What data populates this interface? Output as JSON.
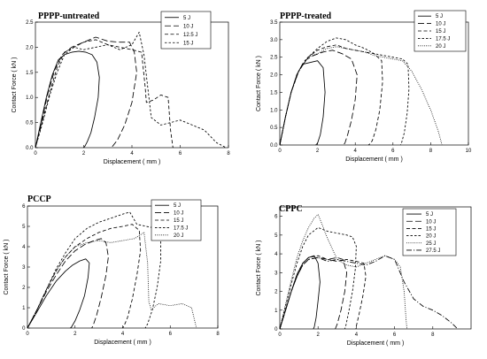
{
  "figure": {
    "background": "#ffffff"
  },
  "chart_data": [
    {
      "type": "line",
      "title": "PPPP-untreated",
      "xlabel": "Displacement ( mm )",
      "ylabel": "Contact Force ( kN )",
      "xlim": [
        0,
        8
      ],
      "ylim": [
        0,
        2.5
      ],
      "xticks": [
        "0",
        "2",
        "4",
        "6",
        "8"
      ],
      "yticks": [
        "0.0",
        "0.5",
        "1.0",
        "1.5",
        "2.0",
        "2.5"
      ],
      "legend_position": "top-right",
      "series": [
        {
          "name": "5 J",
          "dash": "solid",
          "x": [
            0,
            0.2,
            0.45,
            0.7,
            0.95,
            1.2,
            1.5,
            1.8,
            2.1,
            2.35,
            2.55,
            2.65,
            2.6,
            2.45,
            2.3,
            2.15,
            2.05,
            2.0
          ],
          "y": [
            0,
            0.45,
            1.0,
            1.45,
            1.75,
            1.85,
            1.9,
            1.92,
            1.9,
            1.85,
            1.7,
            1.4,
            1.0,
            0.6,
            0.3,
            0.12,
            0.03,
            0
          ]
        },
        {
          "name": "10 J",
          "dash": "long",
          "x": [
            0,
            0.25,
            0.5,
            0.8,
            1.1,
            1.5,
            2.0,
            2.5,
            3.0,
            3.5,
            3.9,
            4.1,
            4.2,
            4.0,
            3.7,
            3.4,
            3.2,
            3.1
          ],
          "y": [
            0,
            0.5,
            1.05,
            1.55,
            1.85,
            2.0,
            2.1,
            2.2,
            2.12,
            2.1,
            2.1,
            1.9,
            1.5,
            0.9,
            0.45,
            0.15,
            0.03,
            0
          ]
        },
        {
          "name": "12.5 J",
          "dash": "medium",
          "x": [
            0,
            0.3,
            0.6,
            0.9,
            1.2,
            1.6,
            2.0,
            2.5,
            3.0,
            3.5,
            4.0,
            4.4,
            4.55,
            4.6,
            4.9,
            5.2,
            5.5,
            5.6,
            5.7
          ],
          "y": [
            0,
            0.55,
            1.1,
            1.6,
            1.9,
            2.0,
            2.1,
            2.15,
            2.05,
            2.0,
            1.95,
            1.9,
            1.2,
            0.9,
            0.95,
            1.05,
            1.0,
            0.35,
            0
          ]
        },
        {
          "name": "15 J",
          "dash": "short",
          "x": [
            0,
            0.3,
            0.6,
            0.9,
            1.2,
            1.6,
            2.0,
            2.5,
            3.0,
            3.5,
            4.0,
            4.3,
            4.5,
            4.8,
            5.2,
            5.6,
            6.0,
            6.5,
            7.0,
            7.5,
            7.9
          ],
          "y": [
            0,
            0.5,
            1.05,
            1.5,
            1.85,
            2.0,
            1.95,
            2.0,
            2.05,
            1.95,
            2.05,
            2.3,
            1.85,
            0.6,
            0.45,
            0.5,
            0.55,
            0.45,
            0.35,
            0.1,
            0
          ]
        }
      ]
    },
    {
      "type": "line",
      "title": "PPPP-treated",
      "xlabel": "Displacement ( mm )",
      "ylabel": "Contact Force ( kN )",
      "xlim": [
        0,
        10
      ],
      "ylim": [
        0,
        3.5
      ],
      "xticks": [
        "0",
        "2",
        "4",
        "6",
        "8",
        "10"
      ],
      "yticks": [
        "0.0",
        "0.5",
        "1.0",
        "1.5",
        "2.0",
        "2.5",
        "3.0",
        "3.5"
      ],
      "legend_position": "top-right",
      "series": [
        {
          "name": "5 J",
          "dash": "solid",
          "x": [
            0,
            0.3,
            0.6,
            0.9,
            1.2,
            1.6,
            2.0,
            2.3,
            2.4,
            2.3,
            2.15,
            2.0,
            1.9
          ],
          "y": [
            0,
            0.8,
            1.5,
            2.0,
            2.3,
            2.35,
            2.4,
            2.2,
            1.5,
            0.8,
            0.3,
            0.05,
            0
          ]
        },
        {
          "name": "10 J",
          "dash": "long",
          "x": [
            0,
            0.3,
            0.6,
            0.9,
            1.3,
            1.8,
            2.3,
            2.8,
            3.3,
            3.8,
            4.1,
            4.0,
            3.8,
            3.6,
            3.45,
            3.35
          ],
          "y": [
            0,
            0.8,
            1.5,
            2.0,
            2.4,
            2.55,
            2.65,
            2.7,
            2.6,
            2.45,
            2.0,
            1.3,
            0.7,
            0.3,
            0.05,
            0
          ]
        },
        {
          "name": "15 J",
          "dash": "medium",
          "x": [
            0,
            0.3,
            0.6,
            1.0,
            1.5,
            2.0,
            2.5,
            3.0,
            3.5,
            4.0,
            4.5,
            5.0,
            5.4,
            5.45,
            5.3,
            5.1,
            4.9,
            4.75,
            4.7
          ],
          "y": [
            0,
            0.8,
            1.5,
            2.1,
            2.5,
            2.7,
            2.8,
            2.85,
            2.75,
            2.7,
            2.65,
            2.6,
            2.4,
            1.8,
            1.0,
            0.45,
            0.12,
            0.02,
            0
          ]
        },
        {
          "name": "17.5 J",
          "dash": "short",
          "x": [
            0,
            0.3,
            0.6,
            1.0,
            1.5,
            2.0,
            2.5,
            3.0,
            3.5,
            4.0,
            4.5,
            5.0,
            5.5,
            6.0,
            6.5,
            6.8,
            6.85,
            6.75,
            6.6,
            6.45,
            6.4
          ],
          "y": [
            0,
            0.8,
            1.5,
            2.1,
            2.5,
            2.75,
            2.95,
            3.05,
            3.0,
            2.85,
            2.75,
            2.6,
            2.55,
            2.5,
            2.45,
            2.3,
            1.6,
            0.9,
            0.35,
            0.05,
            0
          ]
        },
        {
          "name": "20 J",
          "dash": "dotted",
          "x": [
            0,
            0.3,
            0.6,
            1.0,
            1.5,
            2.0,
            2.5,
            3.0,
            3.5,
            4.0,
            4.5,
            5.0,
            5.5,
            6.0,
            6.5,
            7.0,
            7.5,
            8.0,
            8.4,
            8.6
          ],
          "y": [
            0,
            0.8,
            1.5,
            2.1,
            2.5,
            2.6,
            2.75,
            2.8,
            2.75,
            2.7,
            2.65,
            2.55,
            2.5,
            2.45,
            2.4,
            2.1,
            1.6,
            1.0,
            0.4,
            0
          ]
        }
      ]
    },
    {
      "type": "line",
      "title": "PCCP",
      "xlabel": "Displacement ( mm )",
      "ylabel": "Contact Force ( kN )",
      "xlim": [
        0,
        8
      ],
      "ylim": [
        0,
        6
      ],
      "xticks": [
        "0",
        "2",
        "4",
        "6",
        "8"
      ],
      "yticks": [
        "0",
        "1",
        "2",
        "3",
        "4",
        "5",
        "6"
      ],
      "legend_position": "top-right",
      "series": [
        {
          "name": "5 J",
          "dash": "solid",
          "x": [
            0,
            0.4,
            0.8,
            1.2,
            1.6,
            1.9,
            2.2,
            2.45,
            2.6,
            2.55,
            2.4,
            2.2,
            2.0,
            1.85,
            1.8
          ],
          "y": [
            0,
            0.8,
            1.6,
            2.3,
            2.8,
            3.1,
            3.3,
            3.4,
            3.2,
            2.5,
            1.6,
            0.9,
            0.35,
            0.05,
            0
          ]
        },
        {
          "name": "10 J",
          "dash": "long",
          "x": [
            0,
            0.4,
            0.8,
            1.2,
            1.6,
            2.0,
            2.4,
            2.8,
            3.1,
            3.3,
            3.4,
            3.3,
            3.1,
            2.9,
            2.75,
            2.7
          ],
          "y": [
            0,
            0.9,
            1.8,
            2.6,
            3.3,
            3.8,
            4.1,
            4.3,
            4.4,
            4.2,
            3.5,
            2.6,
            1.5,
            0.6,
            0.1,
            0
          ]
        },
        {
          "name": "15 J",
          "dash": "medium",
          "x": [
            0,
            0.4,
            0.8,
            1.2,
            1.6,
            2.0,
            2.5,
            3.0,
            3.5,
            4.0,
            4.4,
            4.7,
            4.75,
            4.6,
            4.4,
            4.2,
            4.05,
            4.0
          ],
          "y": [
            0,
            0.9,
            1.9,
            2.8,
            3.5,
            4.0,
            4.4,
            4.7,
            4.9,
            5.0,
            5.1,
            4.8,
            3.8,
            2.6,
            1.4,
            0.5,
            0.08,
            0
          ]
        },
        {
          "name": "17.5 J",
          "dash": "short",
          "x": [
            0,
            0.4,
            0.8,
            1.2,
            1.6,
            2.0,
            2.5,
            3.0,
            3.5,
            4.0,
            4.3,
            4.6,
            5.0,
            5.4,
            5.6,
            5.6,
            5.45,
            5.25,
            5.05,
            4.95
          ],
          "y": [
            0,
            0.9,
            1.9,
            2.9,
            3.7,
            4.4,
            4.9,
            5.2,
            5.4,
            5.6,
            5.7,
            5.1,
            5.0,
            4.9,
            4.5,
            3.3,
            2.0,
            0.9,
            0.2,
            0
          ]
        },
        {
          "name": "20 J",
          "dash": "dotted",
          "x": [
            0,
            0.4,
            0.8,
            1.2,
            1.6,
            2.0,
            2.5,
            3.0,
            3.5,
            4.0,
            4.5,
            4.9,
            5.05,
            5.1,
            5.2,
            5.5,
            6.0,
            6.5,
            6.9,
            7.1
          ],
          "y": [
            0,
            0.9,
            1.9,
            2.8,
            3.5,
            4.0,
            4.2,
            4.3,
            4.2,
            4.3,
            4.4,
            4.7,
            3.2,
            1.3,
            0.9,
            1.2,
            1.1,
            1.2,
            1.0,
            0
          ]
        }
      ]
    },
    {
      "type": "line",
      "title": "CPPC",
      "xlabel": "Displacement ( mm )",
      "ylabel": "Contact Force ( kN )",
      "xlim": [
        0,
        10
      ],
      "ylim": [
        0,
        6.5
      ],
      "xticks": [
        "0",
        "2",
        "4",
        "6",
        "8"
      ],
      "yticks": [
        "0",
        "1",
        "2",
        "3",
        "4",
        "5",
        "6"
      ],
      "legend_position": "top-right",
      "series": [
        {
          "name": "5 J",
          "dash": "solid",
          "x": [
            0,
            0.3,
            0.6,
            0.9,
            1.2,
            1.5,
            1.8,
            2.0,
            2.1,
            2.0,
            1.9,
            1.8,
            1.75
          ],
          "y": [
            0,
            1.0,
            2.0,
            2.9,
            3.5,
            3.8,
            3.9,
            3.5,
            2.5,
            1.5,
            0.6,
            0.1,
            0
          ]
        },
        {
          "name": "10 J",
          "dash": "long",
          "x": [
            0,
            0.3,
            0.6,
            0.9,
            1.2,
            1.5,
            2.0,
            2.5,
            3.0,
            3.3,
            3.5,
            3.4,
            3.2,
            3.0,
            2.9
          ],
          "y": [
            0,
            1.0,
            2.0,
            2.8,
            3.4,
            3.7,
            3.8,
            3.7,
            3.8,
            3.7,
            3.0,
            2.0,
            1.0,
            0.25,
            0
          ]
        },
        {
          "name": "15 J",
          "dash": "medium",
          "x": [
            0,
            0.3,
            0.6,
            0.9,
            1.2,
            1.5,
            2.0,
            2.5,
            3.0,
            3.5,
            4.0,
            4.4,
            4.5,
            4.35,
            4.15,
            4.0,
            3.95
          ],
          "y": [
            0,
            1.0,
            2.0,
            2.9,
            3.5,
            3.8,
            3.9,
            3.7,
            3.6,
            3.7,
            3.6,
            3.5,
            2.8,
            1.8,
            0.8,
            0.15,
            0
          ]
        },
        {
          "name": "20 J",
          "dash": "short",
          "x": [
            0,
            0.3,
            0.6,
            0.9,
            1.2,
            1.5,
            2.0,
            2.5,
            3.0,
            3.5,
            3.8,
            4.0,
            3.95,
            3.8,
            3.6,
            3.45,
            3.4
          ],
          "y": [
            0,
            1.2,
            2.4,
            3.5,
            4.4,
            5.0,
            5.4,
            5.2,
            5.1,
            5.0,
            4.9,
            4.4,
            3.2,
            2.0,
            0.9,
            0.15,
            0
          ]
        },
        {
          "name": "25 J",
          "dash": "dotted",
          "x": [
            0,
            0.3,
            0.6,
            0.9,
            1.2,
            1.5,
            1.8,
            2.0,
            2.2,
            2.5,
            3.0,
            3.5,
            4.0,
            4.5,
            5.0,
            5.5,
            6.0,
            6.3,
            6.5,
            6.6,
            6.65
          ],
          "y": [
            0,
            1.3,
            2.6,
            3.8,
            4.7,
            5.4,
            5.9,
            6.1,
            5.6,
            4.8,
            3.7,
            3.4,
            3.3,
            3.5,
            3.7,
            3.9,
            3.7,
            3.3,
            2.0,
            0.5,
            0
          ]
        },
        {
          "name": "27.5 J",
          "dash": "dashdot",
          "x": [
            0,
            0.3,
            0.6,
            0.9,
            1.2,
            1.5,
            2.0,
            2.5,
            3.0,
            3.5,
            4.0,
            4.5,
            5.0,
            5.5,
            6.0,
            6.5,
            7.0,
            7.5,
            8.0,
            8.5,
            9.0,
            9.3
          ],
          "y": [
            0,
            1.0,
            2.0,
            2.8,
            3.4,
            3.7,
            3.8,
            3.6,
            3.7,
            3.6,
            3.5,
            3.4,
            3.6,
            3.9,
            3.7,
            2.5,
            1.6,
            1.2,
            1.0,
            0.7,
            0.3,
            0
          ]
        }
      ]
    }
  ]
}
